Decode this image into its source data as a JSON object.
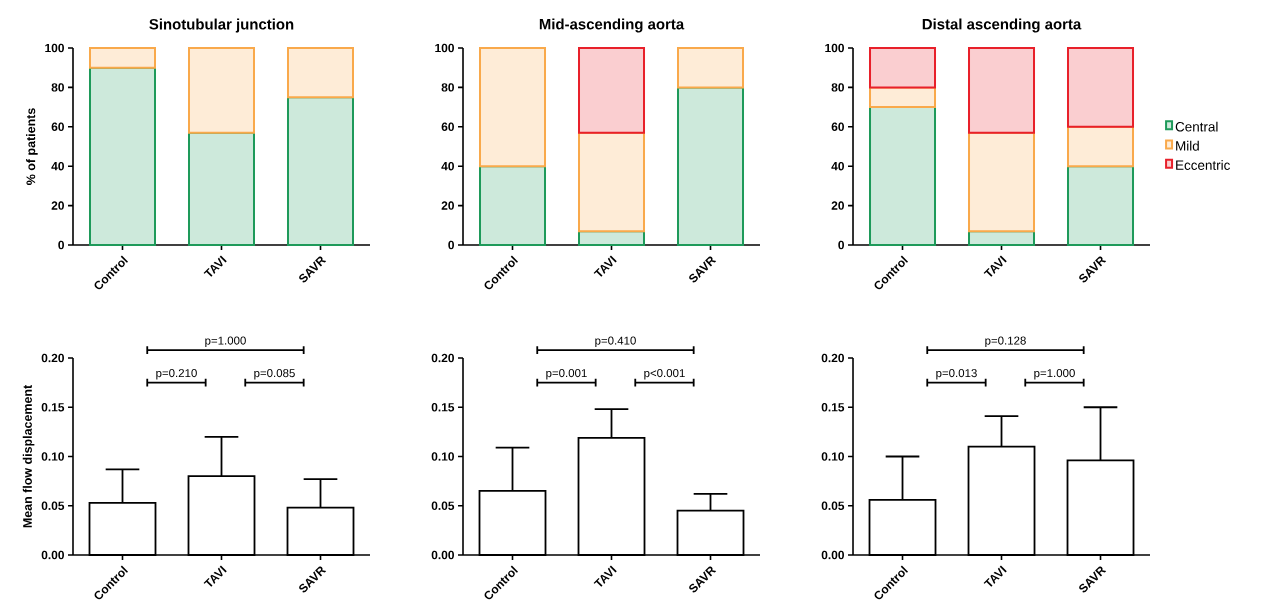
{
  "chart_data": [
    {
      "type": "bar",
      "title": "Sinotubular junction",
      "ylabel": "% of patients",
      "categories": [
        "Control",
        "TAVI",
        "SAVR"
      ],
      "stacked": true,
      "series": [
        {
          "color": "#1e9a5a",
          "values": [
            90,
            57,
            75
          ]
        },
        {
          "color": "#f9a94b",
          "values": [
            10,
            43,
            25
          ]
        }
      ],
      "ylim": [
        0,
        100
      ],
      "yticks": [
        0,
        20,
        40,
        60,
        80,
        100
      ]
    },
    {
      "type": "bar",
      "title": "Mid-ascending aorta",
      "categories": [
        "Control",
        "TAVI",
        "SAVR"
      ],
      "stacked": true,
      "series": [
        {
          "color": "#1e9a5a",
          "values": [
            40,
            7,
            80
          ]
        },
        {
          "color": "#f9a94b",
          "values": [
            60,
            50,
            20
          ]
        },
        {
          "color": "#e8202a",
          "values": [
            0,
            43,
            0
          ]
        }
      ],
      "ylim": [
        0,
        100
      ],
      "yticks": [
        0,
        20,
        40,
        60,
        80,
        100
      ]
    },
    {
      "type": "bar",
      "title": "Distal ascending aorta",
      "categories": [
        "Control",
        "TAVI",
        "SAVR"
      ],
      "stacked": true,
      "legend": "right",
      "series": [
        {
          "name": "Central",
          "color": "#1e9a5a",
          "values": [
            70,
            7,
            40
          ]
        },
        {
          "name": "Mild",
          "color": "#f9a94b",
          "values": [
            10,
            50,
            20
          ]
        },
        {
          "name": "Eccentric",
          "color": "#e8202a",
          "values": [
            20,
            43,
            40
          ]
        }
      ],
      "ylim": [
        0,
        100
      ],
      "yticks": [
        0,
        20,
        40,
        60,
        80,
        100
      ]
    },
    {
      "type": "bar",
      "ylabel": "Mean flow displacement",
      "categories": [
        "Control",
        "TAVI",
        "SAVR"
      ],
      "values": [
        0.053,
        0.08,
        0.048
      ],
      "color": "#000000",
      "errors": [
        [
          0.053,
          0.087
        ],
        [
          0.08,
          0.12
        ],
        [
          0.048,
          0.077
        ]
      ],
      "ylim": [
        0,
        0.2
      ],
      "yticks": [
        {
          "value": 0,
          "label": "0.00"
        },
        {
          "value": 0.05,
          "label": "0.05"
        },
        {
          "value": 0.1,
          "label": "0.10"
        },
        {
          "value": 0.15,
          "label": "0.15"
        },
        {
          "value": 0.2,
          "label": "0.20"
        }
      ],
      "annotations": [
        "p=1.000",
        "p=0.210",
        "p=0.085"
      ]
    },
    {
      "type": "bar",
      "categories": [
        "Control",
        "TAVI",
        "SAVR"
      ],
      "values": [
        0.065,
        0.119,
        0.045
      ],
      "color": "#000000",
      "errors": [
        [
          0.065,
          0.109
        ],
        [
          0.119,
          0.148
        ],
        [
          0.045,
          0.062
        ]
      ],
      "ylim": [
        0,
        0.2
      ],
      "yticks": [
        {
          "value": 0,
          "label": "0.00"
        },
        {
          "value": 0.05,
          "label": "0.05"
        },
        {
          "value": 0.1,
          "label": "0.10"
        },
        {
          "value": 0.15,
          "label": "0.15"
        },
        {
          "value": 0.2,
          "label": "0.20"
        }
      ],
      "annotations": [
        "p=0.410",
        "p=0.001",
        "p<0.001"
      ]
    },
    {
      "type": "bar",
      "categories": [
        "Control",
        "TAVI",
        "SAVR"
      ],
      "values": [
        0.056,
        0.11,
        0.096
      ],
      "color": "#000000",
      "errors": [
        [
          0.056,
          0.1
        ],
        [
          0.11,
          0.141
        ],
        [
          0.096,
          0.15
        ]
      ],
      "ylim": [
        0,
        0.2
      ],
      "yticks": [
        {
          "value": 0,
          "label": "0.00"
        },
        {
          "value": 0.05,
          "label": "0.05"
        },
        {
          "value": 0.1,
          "label": "0.10"
        },
        {
          "value": 0.15,
          "label": "0.15"
        },
        {
          "value": 0.2,
          "label": "0.20"
        }
      ],
      "annotations": [
        "p=0.128",
        "p=0.013",
        "p=1.000"
      ]
    }
  ]
}
